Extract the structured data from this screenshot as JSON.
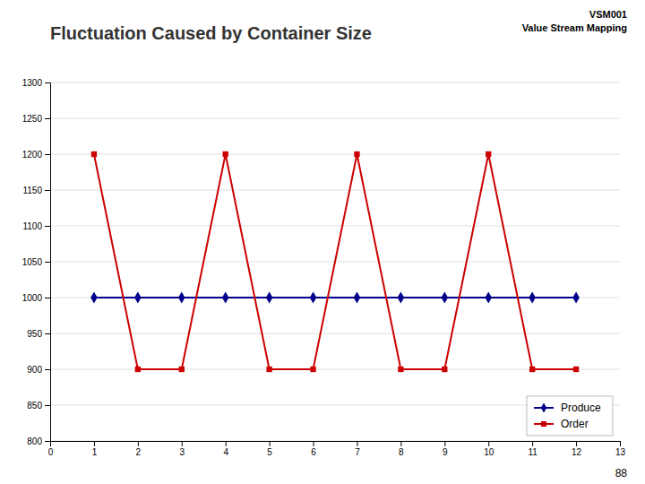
{
  "chart_data": {
    "type": "line",
    "title": "Fluctuation Caused by Container Size",
    "annotations": [
      "VSM001",
      "Value Stream Mapping",
      "88"
    ],
    "x": [
      1,
      2,
      3,
      4,
      5,
      6,
      7,
      8,
      9,
      10,
      11,
      12
    ],
    "series": [
      {
        "name": "Produce",
        "color": "#00008B",
        "marker": "diamond",
        "values": [
          1000,
          1000,
          1000,
          1000,
          1000,
          1000,
          1000,
          1000,
          1000,
          1000,
          1000,
          1000
        ]
      },
      {
        "name": "Order",
        "color": "#cc0000",
        "marker": "square",
        "values": [
          1200,
          900,
          900,
          1200,
          900,
          900,
          1200,
          900,
          900,
          1200,
          900,
          900
        ]
      }
    ],
    "xlim": [
      0,
      13
    ],
    "xticks": [
      0,
      1,
      2,
      3,
      4,
      5,
      6,
      7,
      8,
      9,
      10,
      11,
      12,
      13
    ],
    "ylim": [
      800,
      1300
    ],
    "yticks": [
      800,
      850,
      900,
      950,
      1000,
      1050,
      1100,
      1150,
      1200,
      1250,
      1300
    ],
    "grid": true,
    "legend": "lower right"
  }
}
